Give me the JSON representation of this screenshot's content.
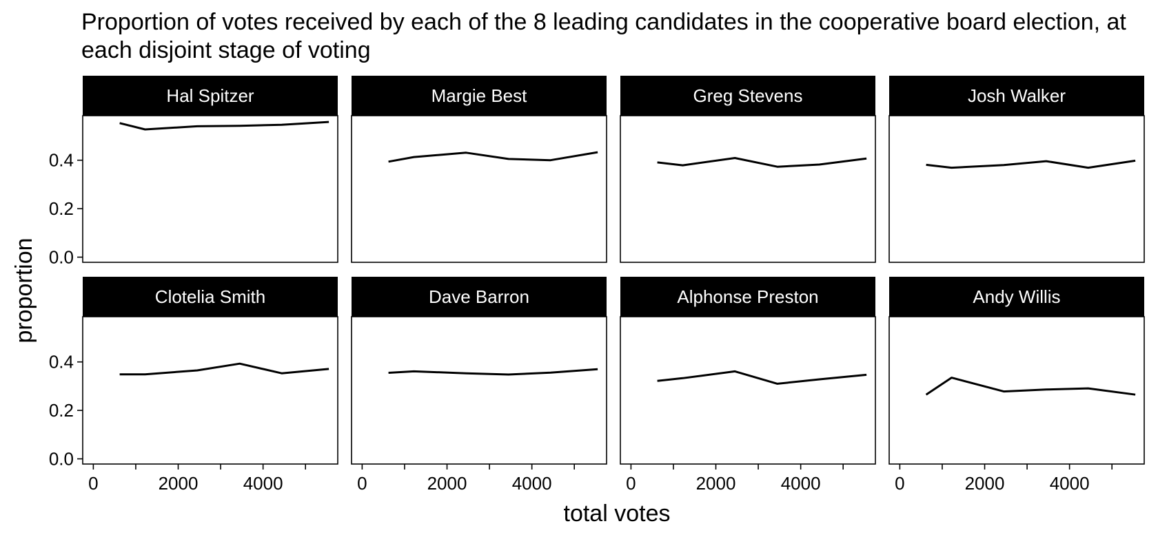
{
  "chart_data": {
    "type": "line",
    "title": "Proportion of votes received by each of the 8 leading candidates in the cooperative board election, at each disjoint stage of voting",
    "xlabel": "total votes",
    "ylabel": "proportion",
    "xlim": [
      -250,
      5700
    ],
    "ylim": [
      -0.025,
      0.6
    ],
    "x_ticks": [
      0,
      2000,
      4000
    ],
    "x_minor_ticks": [
      1000,
      3000,
      5000
    ],
    "y_ticks": [
      "0.0",
      "0.2",
      "0.4"
    ],
    "y_tick_values": [
      0.0,
      0.2,
      0.4
    ],
    "grid": false,
    "line_color": "#000000",
    "strip_color": "#000000",
    "strip_text_color": "#ffffff",
    "x": [
      620,
      1220,
      2450,
      3450,
      4440,
      5550
    ],
    "series": [
      {
        "name": "Hal Spitzer",
        "values": [
          0.553,
          0.527,
          0.54,
          0.542,
          0.546,
          0.558
        ]
      },
      {
        "name": "Margie Best",
        "values": [
          0.394,
          0.413,
          0.431,
          0.405,
          0.4,
          0.433
        ]
      },
      {
        "name": "Greg Stevens",
        "values": [
          0.391,
          0.379,
          0.409,
          0.373,
          0.382,
          0.407
        ]
      },
      {
        "name": "Josh Walker",
        "values": [
          0.381,
          0.369,
          0.38,
          0.396,
          0.369,
          0.398
        ]
      },
      {
        "name": "Clotelia Smith",
        "values": [
          0.349,
          0.349,
          0.365,
          0.393,
          0.353,
          0.371
        ]
      },
      {
        "name": "Dave Barron",
        "values": [
          0.355,
          0.361,
          0.353,
          0.348,
          0.356,
          0.37
        ]
      },
      {
        "name": "Alphonse Preston",
        "values": [
          0.322,
          0.333,
          0.361,
          0.31,
          0.328,
          0.347
        ]
      },
      {
        "name": "Andy Willis",
        "values": [
          0.265,
          0.335,
          0.278,
          0.286,
          0.291,
          0.265
        ]
      }
    ]
  }
}
